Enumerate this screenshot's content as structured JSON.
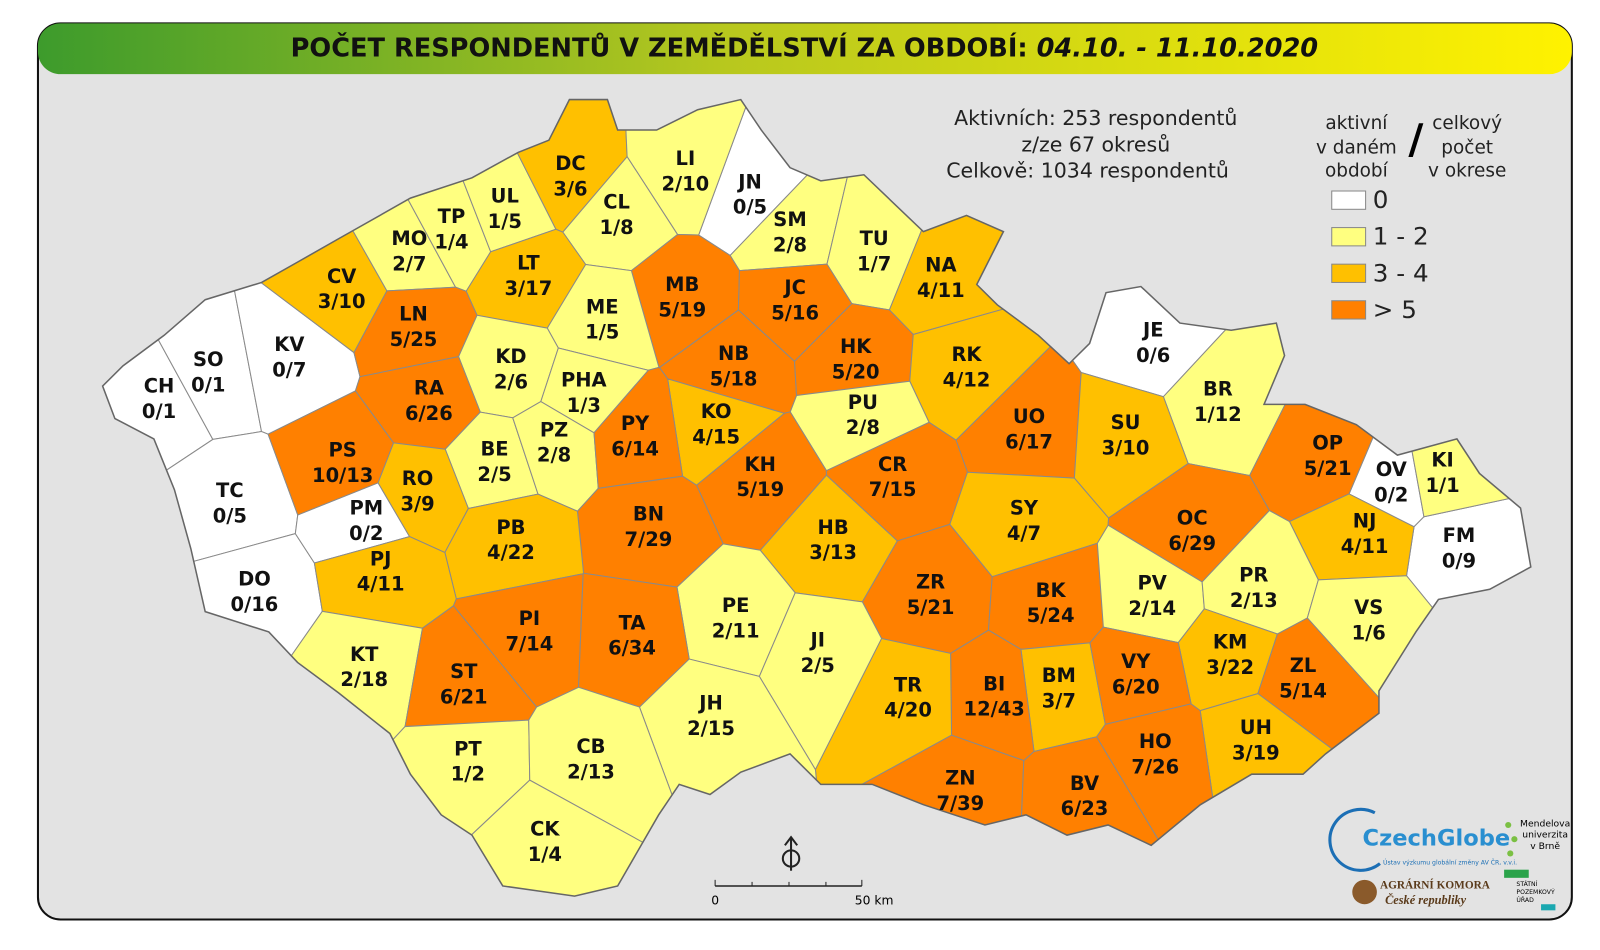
{
  "title": {
    "main": "POČET RESPONDENTŮ V ZEMĚDĚLSTVÍ ZA OBDOBÍ: ",
    "period": "04.10. - 11.10.2020"
  },
  "summary": [
    "Aktivních: 253 respondentů",
    "z/ze 67 okresů",
    "Celkově: 1034 respondentů"
  ],
  "legend": {
    "header_left": [
      "aktivní",
      "v daném",
      "období"
    ],
    "separator": "/",
    "header_right": [
      "celkový",
      "počet",
      "v okrese"
    ],
    "items": [
      {
        "label": "0",
        "color": "#ffffff"
      },
      {
        "label": "1 - 2",
        "color": "#ffff80"
      },
      {
        "label": "3 - 4",
        "color": "#ffc000"
      },
      {
        "label": "> 5",
        "color": "#ff8000"
      }
    ]
  },
  "districts": [
    {
      "code": "CH",
      "count": "0/1",
      "color": "#ffffff"
    },
    {
      "code": "SO",
      "count": "0/1",
      "color": "#ffffff"
    },
    {
      "code": "KV",
      "count": "0/7",
      "color": "#ffffff"
    },
    {
      "code": "TC",
      "count": "0/5",
      "color": "#ffffff"
    },
    {
      "code": "DO",
      "count": "0/16",
      "color": "#ffffff"
    },
    {
      "code": "PM",
      "count": "0/2",
      "color": "#ffffff"
    },
    {
      "code": "JN",
      "count": "0/5",
      "color": "#ffffff"
    },
    {
      "code": "JE",
      "count": "0/6",
      "color": "#ffffff"
    },
    {
      "code": "OV",
      "count": "0/2",
      "color": "#ffffff"
    },
    {
      "code": "FM",
      "count": "0/9",
      "color": "#ffffff"
    },
    {
      "code": "CV",
      "count": "3/10",
      "color": "#ffc000"
    },
    {
      "code": "MO",
      "count": "2/7",
      "color": "#ffff80"
    },
    {
      "code": "TP",
      "count": "1/4",
      "color": "#ffff80"
    },
    {
      "code": "UL",
      "count": "1/5",
      "color": "#ffff80"
    },
    {
      "code": "DC",
      "count": "3/6",
      "color": "#ffc000"
    },
    {
      "code": "LI",
      "count": "2/10",
      "color": "#ffff80"
    },
    {
      "code": "CL",
      "count": "1/8",
      "color": "#ffff80"
    },
    {
      "code": "SM",
      "count": "2/8",
      "color": "#ffff80"
    },
    {
      "code": "TU",
      "count": "1/7",
      "color": "#ffff80"
    },
    {
      "code": "NA",
      "count": "4/11",
      "color": "#ffc000"
    },
    {
      "code": "LT",
      "count": "3/17",
      "color": "#ffc000"
    },
    {
      "code": "LN",
      "count": "5/25",
      "color": "#ff8000"
    },
    {
      "code": "MB",
      "count": "5/19",
      "color": "#ff8000"
    },
    {
      "code": "JC",
      "count": "5/16",
      "color": "#ff8000"
    },
    {
      "code": "ME",
      "count": "1/5",
      "color": "#ffff80"
    },
    {
      "code": "KD",
      "count": "2/6",
      "color": "#ffff80"
    },
    {
      "code": "NB",
      "count": "5/18",
      "color": "#ff8000"
    },
    {
      "code": "HK",
      "count": "5/20",
      "color": "#ff8000"
    },
    {
      "code": "RK",
      "count": "4/12",
      "color": "#ffc000"
    },
    {
      "code": "RA",
      "count": "6/26",
      "color": "#ff8000"
    },
    {
      "code": "PHA",
      "count": "1/3",
      "color": "#ffff80"
    },
    {
      "code": "BR",
      "count": "1/12",
      "color": "#ffff80"
    },
    {
      "code": "PU",
      "count": "2/8",
      "color": "#ffff80"
    },
    {
      "code": "KO",
      "count": "4/15",
      "color": "#ffc000"
    },
    {
      "code": "UO",
      "count": "6/17",
      "color": "#ff8000"
    },
    {
      "code": "SU",
      "count": "3/10",
      "color": "#ffc000"
    },
    {
      "code": "PS",
      "count": "10/13",
      "color": "#ff8000"
    },
    {
      "code": "BE",
      "count": "2/5",
      "color": "#ffff80"
    },
    {
      "code": "PZ",
      "count": "2/8",
      "color": "#ffff80"
    },
    {
      "code": "PY",
      "count": "6/14",
      "color": "#ff8000"
    },
    {
      "code": "KH",
      "count": "5/19",
      "color": "#ff8000"
    },
    {
      "code": "CR",
      "count": "7/15",
      "color": "#ff8000"
    },
    {
      "code": "OP",
      "count": "5/21",
      "color": "#ff8000"
    },
    {
      "code": "KI",
      "count": "1/1",
      "color": "#ffff80"
    },
    {
      "code": "RO",
      "count": "3/9",
      "color": "#ffc000"
    },
    {
      "code": "SY",
      "count": "4/7",
      "color": "#ffc000"
    },
    {
      "code": "OC",
      "count": "6/29",
      "color": "#ff8000"
    },
    {
      "code": "NJ",
      "count": "4/11",
      "color": "#ffc000"
    },
    {
      "code": "BN",
      "count": "7/29",
      "color": "#ff8000"
    },
    {
      "code": "PB",
      "count": "4/22",
      "color": "#ffc000"
    },
    {
      "code": "HB",
      "count": "3/13",
      "color": "#ffc000"
    },
    {
      "code": "PJ",
      "count": "4/11",
      "color": "#ffc000"
    },
    {
      "code": "ZR",
      "count": "5/21",
      "color": "#ff8000"
    },
    {
      "code": "BK",
      "count": "5/24",
      "color": "#ff8000"
    },
    {
      "code": "PV",
      "count": "2/14",
      "color": "#ffff80"
    },
    {
      "code": "PR",
      "count": "2/13",
      "color": "#ffff80"
    },
    {
      "code": "VS",
      "count": "1/6",
      "color": "#ffff80"
    },
    {
      "code": "PE",
      "count": "2/11",
      "color": "#ffff80"
    },
    {
      "code": "JI",
      "count": "2/5",
      "color": "#ffff80"
    },
    {
      "code": "PI",
      "count": "7/14",
      "color": "#ff8000"
    },
    {
      "code": "TA",
      "count": "6/34",
      "color": "#ff8000"
    },
    {
      "code": "KT",
      "count": "2/18",
      "color": "#ffff80"
    },
    {
      "code": "ST",
      "count": "6/21",
      "color": "#ff8000"
    },
    {
      "code": "KM",
      "count": "3/22",
      "color": "#ffc000"
    },
    {
      "code": "ZL",
      "count": "5/14",
      "color": "#ff8000"
    },
    {
      "code": "BM",
      "count": "3/7",
      "color": "#ffc000"
    },
    {
      "code": "VY",
      "count": "6/20",
      "color": "#ff8000"
    },
    {
      "code": "BI",
      "count": "12/43",
      "color": "#ff8000"
    },
    {
      "code": "TR",
      "count": "4/20",
      "color": "#ffc000"
    },
    {
      "code": "JH",
      "count": "2/15",
      "color": "#ffff80"
    },
    {
      "code": "UH",
      "count": "3/19",
      "color": "#ffc000"
    },
    {
      "code": "HO",
      "count": "7/26",
      "color": "#ff8000"
    },
    {
      "code": "PT",
      "count": "1/2",
      "color": "#ffff80"
    },
    {
      "code": "CB",
      "count": "2/13",
      "color": "#ffff80"
    },
    {
      "code": "ZN",
      "count": "7/39",
      "color": "#ff8000"
    },
    {
      "code": "BV",
      "count": "6/23",
      "color": "#ff8000"
    },
    {
      "code": "CK",
      "count": "1/4",
      "color": "#ffff80"
    }
  ],
  "scale": {
    "start": "0",
    "end": "50 km"
  },
  "logos": {
    "czechglobe": "CzechGlobe",
    "czechglobe_sub": "Ústav výzkumu globální změny AV ČR, v.v.i.",
    "mendelu": [
      "Mendelova",
      "univerzita",
      "v Brně"
    ],
    "agrarni": [
      "AGRÁRNÍ KOMORA",
      "České republiky"
    ],
    "spu": [
      "STÁTNÍ",
      "POZEMKOVÝ",
      "ÚŘAD"
    ]
  }
}
